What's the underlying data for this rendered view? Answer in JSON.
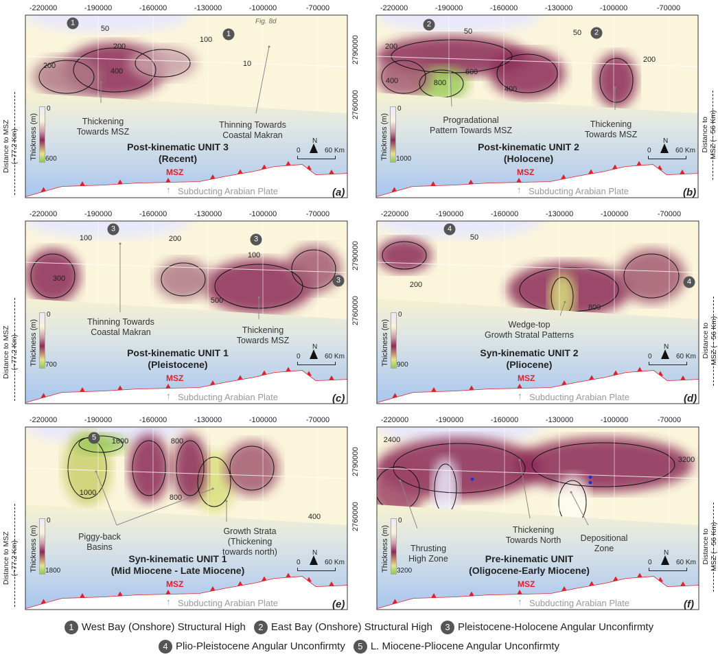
{
  "x_ticks": [
    "-220000",
    "-190000",
    "-160000",
    "-130000",
    "-100000",
    "-70000"
  ],
  "y_ticks": [
    "2790000",
    "2760000"
  ],
  "distance_left": [
    "Distance to MSZ",
    "(~77.2 Km)"
  ],
  "distance_right": [
    "Distance to",
    "MSZ (~ 56 Km)"
  ],
  "common": {
    "thickness_label": "Thickness (m)",
    "msz": "MSZ",
    "subducting": "Subducting Arabian Plate",
    "scale_zero": "0",
    "scale_km": "60 Km",
    "north": "N",
    "cb_min": "0"
  },
  "colors": {
    "msz_line": "#e0202a",
    "sea": "#a9c6ef",
    "land_low": "#fbf5dc",
    "land_mid": "#8a2b56",
    "land_high": "#8cc95a",
    "marker": "#555555"
  },
  "panels": [
    {
      "id": "a",
      "label": "(a)",
      "title": [
        "Post-kinematic UNIT 3",
        "(Recent)"
      ],
      "cb_max": "600",
      "fig_ref": "Fig. 8d",
      "markers": [
        "1",
        "1"
      ],
      "contours": [
        "50",
        "100",
        "200",
        "200",
        "400",
        "10"
      ],
      "annotations": [
        [
          "Thickening",
          "Towards MSZ"
        ],
        [
          "Thinning Towards",
          "Coastal Makran"
        ]
      ]
    },
    {
      "id": "b",
      "label": "(b)",
      "title": [
        "Post-kinematic UNIT 2",
        "(Holocene)"
      ],
      "cb_max": "1000",
      "markers": [
        "2",
        "2"
      ],
      "contours": [
        "50",
        "50",
        "200",
        "200",
        "400",
        "600",
        "800",
        "400"
      ],
      "annotations": [
        [
          "Progradational",
          "Pattern Towards MSZ"
        ],
        [
          "Thickening",
          "Towards MSZ"
        ]
      ]
    },
    {
      "id": "c",
      "label": "(c)",
      "title": [
        "Post-kinematic UNIT 1",
        "(Pleistocene)"
      ],
      "cb_max": "700",
      "markers": [
        "3",
        "3",
        "3"
      ],
      "contours": [
        "100",
        "200",
        "100",
        "300",
        "500"
      ],
      "annotations": [
        [
          "Thinning Towards",
          "Coastal Makran"
        ],
        [
          "Thickening",
          "Towards MSZ"
        ]
      ]
    },
    {
      "id": "d",
      "label": "(d)",
      "title": [
        "Syn-kinematic UNIT 2",
        "(Pliocene)"
      ],
      "cb_max": "900",
      "markers": [
        "4",
        "4"
      ],
      "contours": [
        "50",
        "200",
        "800"
      ],
      "annotations": [
        [
          "Wedge-top",
          "Growth Stratal Patterns"
        ]
      ]
    },
    {
      "id": "e",
      "label": "(e)",
      "title": [
        "Syn-kinematic UNIT 1",
        "(Mid Miocene - Late Miocene)"
      ],
      "cb_max": "1800",
      "markers": [
        "5"
      ],
      "contours": [
        "1600",
        "800",
        "1000",
        "800",
        "400"
      ],
      "annotations": [
        [
          "Piggy-back",
          "Basins"
        ],
        [
          "Growth Strata",
          "(Thickening",
          "towards north)"
        ]
      ]
    },
    {
      "id": "f",
      "label": "(f)",
      "title": [
        "Pre-kinematic UNIT",
        "(Oligocene-Early Miocene)"
      ],
      "cb_max": "3200",
      "markers": [],
      "contours": [
        "2400",
        "3200"
      ],
      "annotations": [
        [
          "Thrusting",
          "High Zone"
        ],
        [
          "Thickening",
          "Towards North"
        ],
        [
          "Depositional",
          "Zone"
        ]
      ]
    }
  ],
  "legend": [
    {
      "num": "1",
      "text": "West Bay (Onshore) Structural High"
    },
    {
      "num": "2",
      "text": "East Bay (Onshore) Structural High"
    },
    {
      "num": "3",
      "text": "Pleistocene-Holocene Angular Unconfirmty"
    },
    {
      "num": "4",
      "text": "Plio-Pleistocene Angular Unconfirmty"
    },
    {
      "num": "5",
      "text": "L. Miocene-Pliocene Angular Unconfirmty"
    }
  ]
}
